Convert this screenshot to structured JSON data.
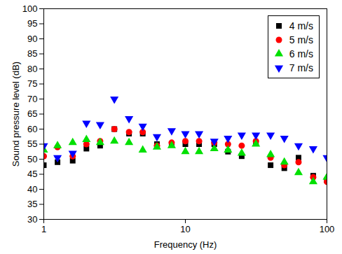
{
  "chart_data": {
    "type": "scatter",
    "x_label": "Frequency (Hz)",
    "y_label": "Sound pressure level (dB)",
    "log": "x",
    "grid": false,
    "legend": "upper right",
    "xlim": [
      1,
      100
    ],
    "xticks": [
      1,
      10,
      100
    ],
    "ylim": [
      30,
      100
    ],
    "yticks": [
      30,
      35,
      40,
      45,
      50,
      55,
      60,
      65,
      70,
      75,
      80,
      85,
      90,
      95,
      100
    ],
    "x": [
      1,
      1.25,
      1.6,
      2,
      2.5,
      3.15,
      4,
      5,
      6.3,
      8,
      10,
      12.5,
      16,
      20,
      25,
      31.5,
      40,
      50,
      63,
      80,
      100
    ],
    "series": [
      {
        "name": "4 m/s",
        "color": "#000000",
        "marker": "square",
        "values": [
          48,
          49,
          49.5,
          53.5,
          54.5,
          60,
          58.5,
          58.5,
          55,
          55,
          55,
          55,
          55,
          52.5,
          51,
          55.5,
          48,
          47,
          50.5,
          44.5,
          43
        ]
      },
      {
        "name": "5 m/s",
        "color": "#ff0000",
        "marker": "circle",
        "values": [
          51,
          54,
          51,
          55,
          56,
          60,
          59,
          59,
          54.5,
          55.5,
          56,
          56,
          55.5,
          55,
          54.5,
          56,
          50.5,
          48,
          49,
          44,
          42.5
        ]
      },
      {
        "name": "6 m/s",
        "color": "#00e000",
        "marker": "triangle-up",
        "values": [
          53,
          54.5,
          55.5,
          56.5,
          55.5,
          56,
          55.5,
          53,
          54,
          54.5,
          52.5,
          52.5,
          53.5,
          53,
          52,
          55,
          51.5,
          49,
          45.5,
          42.5,
          44
        ]
      },
      {
        "name": "7 m/s",
        "color": "#0000ff",
        "marker": "triangle-down",
        "values": [
          54.5,
          50.5,
          52,
          62,
          61.5,
          70,
          63.5,
          61,
          57.5,
          59.5,
          58.5,
          58.5,
          56,
          57,
          58,
          58,
          58,
          57,
          54.5,
          53.5,
          50.5
        ]
      }
    ]
  }
}
